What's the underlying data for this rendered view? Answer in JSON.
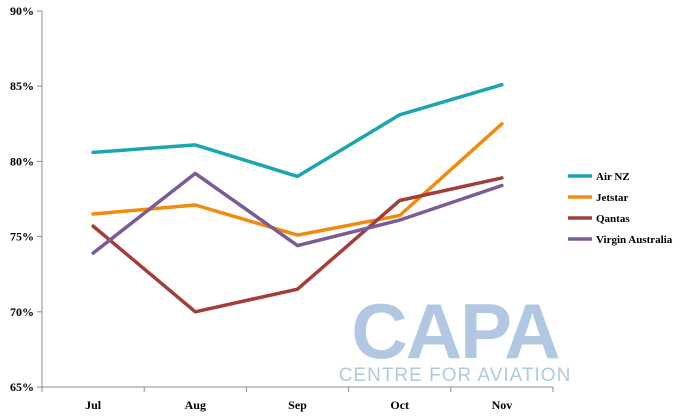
{
  "chart_data": {
    "type": "line",
    "title": "",
    "xlabel": "",
    "ylabel": "",
    "categories": [
      "Jul",
      "Aug",
      "Sep",
      "Oct",
      "Nov"
    ],
    "ylim": [
      65,
      90
    ],
    "yticks": [
      65,
      70,
      75,
      80,
      85,
      90
    ],
    "ytick_labels": [
      "65%",
      "70%",
      "75%",
      "80%",
      "85%",
      "90%"
    ],
    "grid": false,
    "legend_position": "right",
    "series": [
      {
        "name": "Air NZ",
        "color": "#1aa5b0",
        "values": [
          80.6,
          81.1,
          79.0,
          83.1,
          85.1
        ]
      },
      {
        "name": "Jetstar",
        "color": "#f28a0d",
        "values": [
          76.5,
          77.1,
          75.1,
          76.4,
          82.5
        ]
      },
      {
        "name": "Qantas",
        "color": "#a33d3a",
        "values": [
          75.7,
          70.0,
          71.5,
          77.4,
          78.9
        ]
      },
      {
        "name": "Virgin Australia",
        "color": "#7c5a96",
        "values": [
          73.9,
          79.2,
          74.4,
          76.1,
          78.4
        ]
      }
    ]
  },
  "watermark": {
    "main": "CAPA",
    "sub": "CENTRE FOR AVIATION"
  }
}
